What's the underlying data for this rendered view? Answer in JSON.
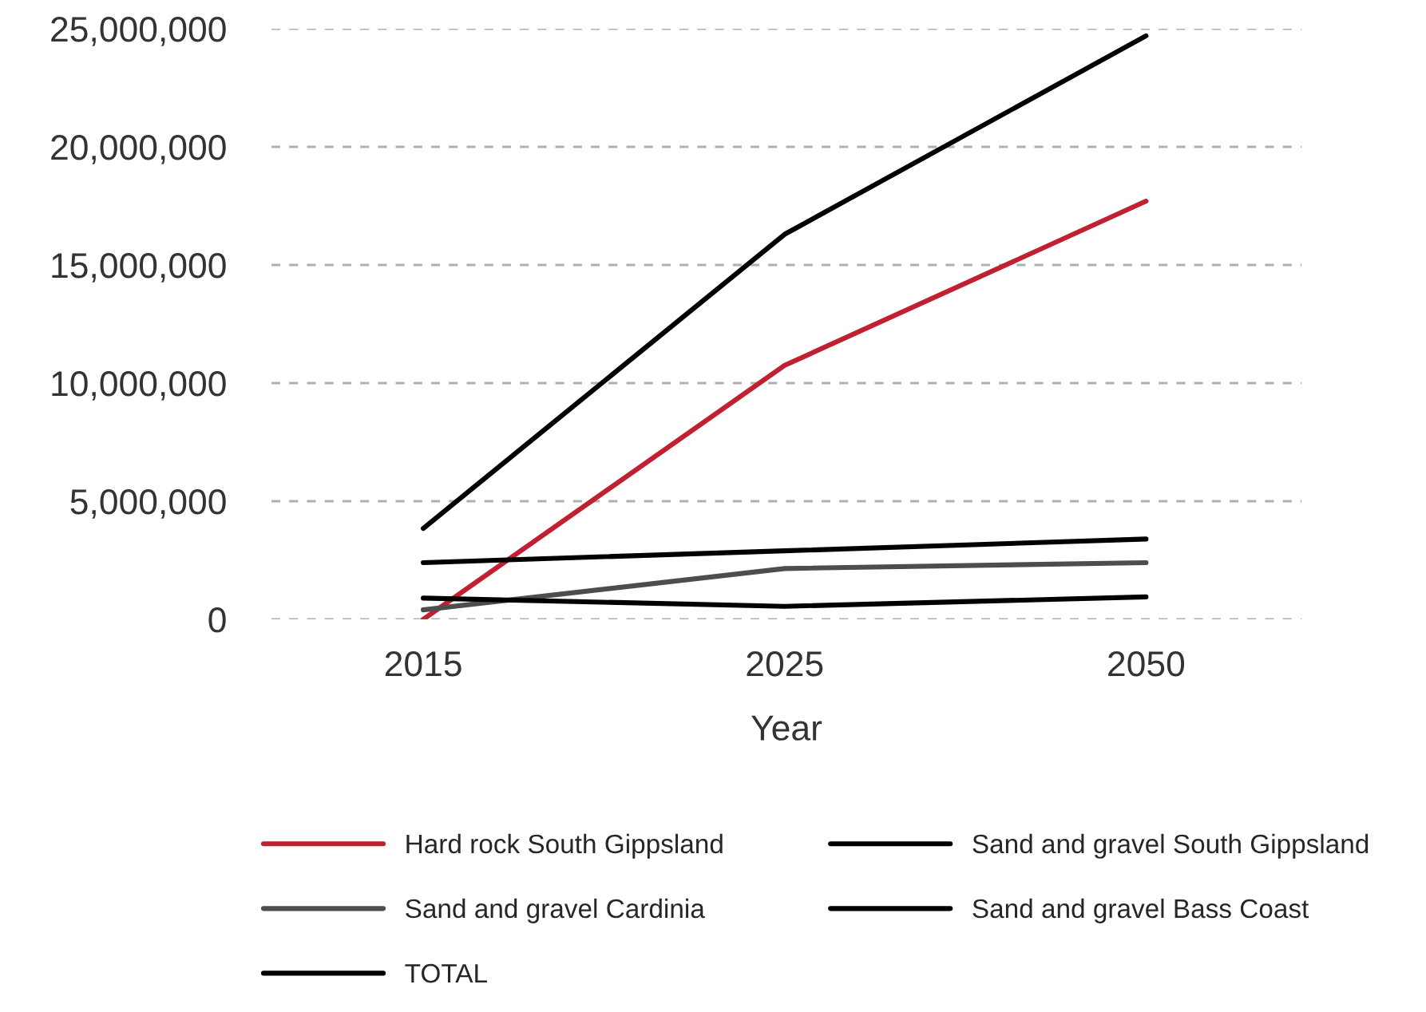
{
  "chart_data": {
    "type": "line",
    "xlabel": "Year",
    "categories": [
      "2015",
      "2025",
      "2050"
    ],
    "series": [
      {
        "name": "Hard rock South Gippsland",
        "color": "#c0202f",
        "values": [
          0,
          10750000,
          17700000
        ]
      },
      {
        "name": "Sand and gravel South Gippsland",
        "color": "#000000",
        "values": [
          2400000,
          2900000,
          3400000
        ]
      },
      {
        "name": "Sand and gravel Cardinia",
        "color": "#4d4d4d",
        "values": [
          400000,
          2150000,
          2400000
        ]
      },
      {
        "name": "Sand and gravel Bass Coast",
        "color": "#000000",
        "values": [
          900000,
          550000,
          950000
        ]
      },
      {
        "name": "TOTAL",
        "color": "#000000",
        "values": [
          3850000,
          16300000,
          24700000
        ]
      }
    ],
    "ylim": [
      0,
      25000000
    ],
    "yticks": [
      {
        "value": 0,
        "label": "0"
      },
      {
        "value": 5000000,
        "label": "5,000,000"
      },
      {
        "value": 10000000,
        "label": "10,000,000"
      },
      {
        "value": 15000000,
        "label": "15,000,000"
      },
      {
        "value": 20000000,
        "label": "20,000,000"
      },
      {
        "value": 25000000,
        "label": "25,000,000"
      }
    ],
    "grid": "y",
    "legend": "bottom",
    "marker": "none",
    "line_style": "solid"
  }
}
